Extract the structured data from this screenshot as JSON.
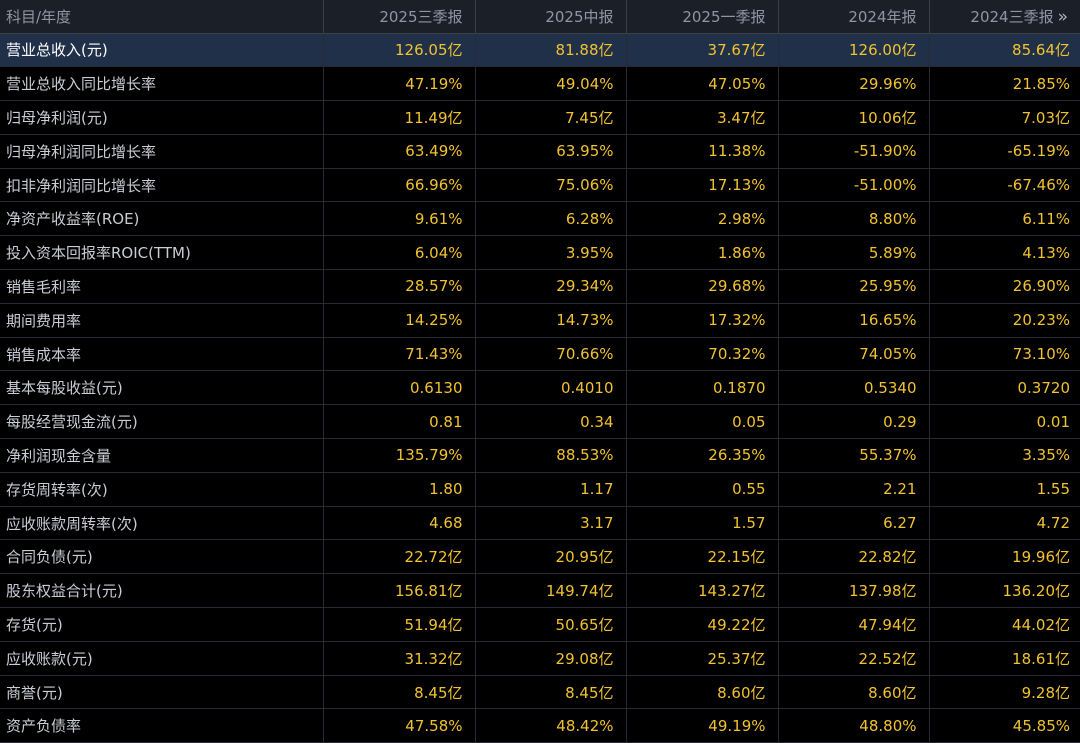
{
  "table": {
    "corner_label": "科目/年度",
    "periods": [
      "2025三季报",
      "2025中报",
      "2025一季报",
      "2024年报",
      "2024三季报"
    ],
    "more_icon": "double-chevron-right-icon",
    "more_glyph": "»",
    "colors": {
      "value_text": "#f1c232",
      "label_text": "#c8ccd4",
      "highlight_row": "#1f3048",
      "header_bg": "#1b1f27"
    },
    "rows": [
      {
        "label": "营业总收入(元)",
        "values": [
          "126.05亿",
          "81.88亿",
          "37.67亿",
          "126.00亿",
          "85.64亿"
        ]
      },
      {
        "label": "营业总收入同比增长率",
        "values": [
          "47.19%",
          "49.04%",
          "47.05%",
          "29.96%",
          "21.85%"
        ]
      },
      {
        "label": "归母净利润(元)",
        "values": [
          "11.49亿",
          "7.45亿",
          "3.47亿",
          "10.06亿",
          "7.03亿"
        ]
      },
      {
        "label": "归母净利润同比增长率",
        "values": [
          "63.49%",
          "63.95%",
          "11.38%",
          "-51.90%",
          "-65.19%"
        ]
      },
      {
        "label": "扣非净利润同比增长率",
        "values": [
          "66.96%",
          "75.06%",
          "17.13%",
          "-51.00%",
          "-67.46%"
        ]
      },
      {
        "label": "净资产收益率(ROE)",
        "values": [
          "9.61%",
          "6.28%",
          "2.98%",
          "8.80%",
          "6.11%"
        ]
      },
      {
        "label": "投入资本回报率ROIC(TTM)",
        "values": [
          "6.04%",
          "3.95%",
          "1.86%",
          "5.89%",
          "4.13%"
        ]
      },
      {
        "label": "销售毛利率",
        "values": [
          "28.57%",
          "29.34%",
          "29.68%",
          "25.95%",
          "26.90%"
        ]
      },
      {
        "label": "期间费用率",
        "values": [
          "14.25%",
          "14.73%",
          "17.32%",
          "16.65%",
          "20.23%"
        ]
      },
      {
        "label": "销售成本率",
        "values": [
          "71.43%",
          "70.66%",
          "70.32%",
          "74.05%",
          "73.10%"
        ]
      },
      {
        "label": "基本每股收益(元)",
        "values": [
          "0.6130",
          "0.4010",
          "0.1870",
          "0.5340",
          "0.3720"
        ]
      },
      {
        "label": "每股经营现金流(元)",
        "values": [
          "0.81",
          "0.34",
          "0.05",
          "0.29",
          "0.01"
        ]
      },
      {
        "label": "净利润现金含量",
        "values": [
          "135.79%",
          "88.53%",
          "26.35%",
          "55.37%",
          "3.35%"
        ]
      },
      {
        "label": "存货周转率(次)",
        "values": [
          "1.80",
          "1.17",
          "0.55",
          "2.21",
          "1.55"
        ]
      },
      {
        "label": "应收账款周转率(次)",
        "values": [
          "4.68",
          "3.17",
          "1.57",
          "6.27",
          "4.72"
        ]
      },
      {
        "label": "合同负债(元)",
        "values": [
          "22.72亿",
          "20.95亿",
          "22.15亿",
          "22.82亿",
          "19.96亿"
        ]
      },
      {
        "label": "股东权益合计(元)",
        "values": [
          "156.81亿",
          "149.74亿",
          "143.27亿",
          "137.98亿",
          "136.20亿"
        ]
      },
      {
        "label": "存货(元)",
        "values": [
          "51.94亿",
          "50.65亿",
          "49.22亿",
          "47.94亿",
          "44.02亿"
        ]
      },
      {
        "label": "应收账款(元)",
        "values": [
          "31.32亿",
          "29.08亿",
          "25.37亿",
          "22.52亿",
          "18.61亿"
        ]
      },
      {
        "label": "商誉(元)",
        "values": [
          "8.45亿",
          "8.45亿",
          "8.60亿",
          "8.60亿",
          "9.28亿"
        ]
      },
      {
        "label": "资产负债率",
        "values": [
          "47.58%",
          "48.42%",
          "49.19%",
          "48.80%",
          "45.85%"
        ]
      }
    ]
  }
}
